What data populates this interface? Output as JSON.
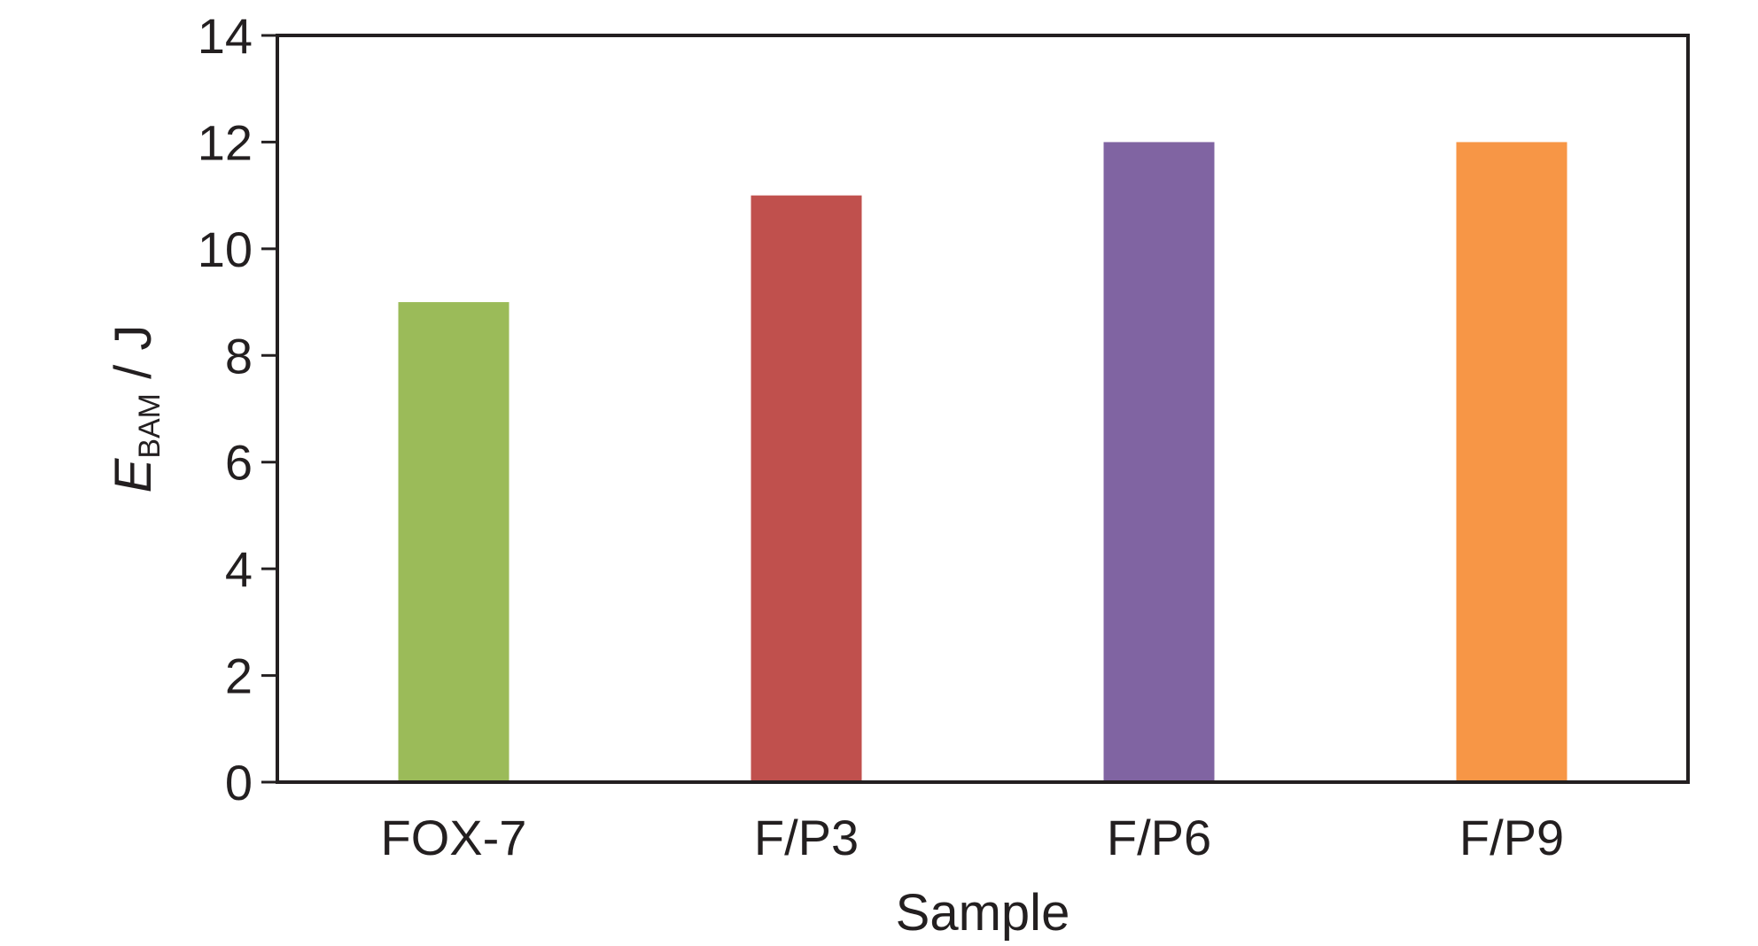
{
  "chart_data": {
    "type": "bar",
    "categories": [
      "FOX-7",
      "F/P3",
      "F/P6",
      "F/P9"
    ],
    "values": [
      9,
      11,
      12,
      12
    ],
    "colors": [
      "#9bbb59",
      "#c0504d",
      "#8064a2",
      "#f79646"
    ],
    "xlabel": "Sample",
    "ylabel": {
      "main": "E",
      "subscript": "BAM",
      "unit": " / J"
    },
    "ylim": [
      0,
      14
    ],
    "yticks": [
      0,
      2,
      4,
      6,
      8,
      10,
      12,
      14
    ],
    "grid": false,
    "legend": "none"
  }
}
